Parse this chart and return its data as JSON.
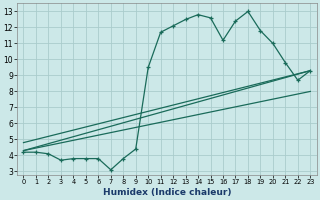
{
  "xlabel": "Humidex (Indice chaleur)",
  "bg_color": "#cce8e8",
  "grid_color": "#aacccc",
  "line_color": "#1a6b5a",
  "xlim": [
    -0.5,
    23.5
  ],
  "ylim": [
    2.8,
    13.5
  ],
  "xticks": [
    0,
    1,
    2,
    3,
    4,
    5,
    6,
    7,
    8,
    9,
    10,
    11,
    12,
    13,
    14,
    15,
    16,
    17,
    18,
    19,
    20,
    21,
    22,
    23
  ],
  "yticks": [
    3,
    4,
    5,
    6,
    7,
    8,
    9,
    10,
    11,
    12,
    13
  ],
  "curve1_x": [
    0,
    1,
    2,
    3,
    4,
    5,
    6,
    7,
    8,
    9,
    10,
    11,
    12,
    13,
    14,
    15,
    16,
    17,
    18,
    19,
    20,
    21,
    22,
    23
  ],
  "curve1_y": [
    4.2,
    4.2,
    4.1,
    3.7,
    3.8,
    3.8,
    3.8,
    3.1,
    3.8,
    4.4,
    9.5,
    11.7,
    12.1,
    12.5,
    12.8,
    12.6,
    11.2,
    12.4,
    13.0,
    11.8,
    11.0,
    9.8,
    8.7,
    9.3
  ],
  "curve2_x": [
    0,
    23
  ],
  "curve2_y": [
    4.3,
    9.3
  ],
  "curve3_x": [
    0,
    23
  ],
  "curve3_y": [
    4.3,
    8.0
  ],
  "curve4_x": [
    0,
    23
  ],
  "curve4_y": [
    4.8,
    9.3
  ]
}
